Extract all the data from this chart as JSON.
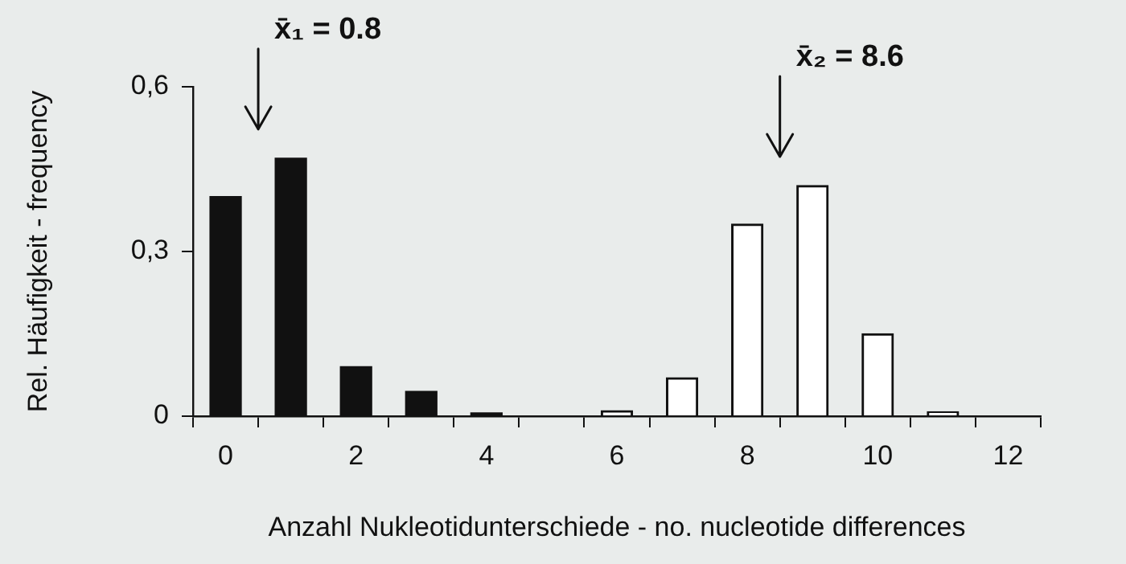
{
  "chart_data": {
    "type": "bar",
    "xlabel": "Anzahl Nukleotidunterschiede - no. nucleotide differences",
    "ylabel": "Rel. Häufigkeit - frequency",
    "series": [
      {
        "color": "#111111",
        "x": [
          0,
          1,
          2,
          3,
          4
        ],
        "values": [
          0.4,
          0.47,
          0.09,
          0.045,
          0.006
        ]
      },
      {
        "color": "#ffffff",
        "x": [
          6,
          7,
          8,
          9,
          10,
          11
        ],
        "values": [
          0.01,
          0.07,
          0.35,
          0.42,
          0.15,
          0.008
        ]
      }
    ],
    "xlim": [
      -0.5,
      12.5
    ],
    "xticks": [
      {
        "value": -0.5,
        "label": null
      },
      0,
      {
        "value": 0.5,
        "label": null
      },
      {
        "value": 1.5,
        "label": null
      },
      2,
      {
        "value": 2.5,
        "label": null
      },
      {
        "value": 3.5,
        "label": null
      },
      4,
      {
        "value": 4.5,
        "label": null
      },
      {
        "value": 5.5,
        "label": null
      },
      6,
      {
        "value": 6.5,
        "label": null
      },
      {
        "value": 7.5,
        "label": null
      },
      8,
      {
        "value": 8.5,
        "label": null
      },
      {
        "value": 9.5,
        "label": null
      },
      10,
      {
        "value": 10.5,
        "label": null
      },
      {
        "value": 11.5,
        "label": null
      },
      12,
      {
        "value": 12.5,
        "label": null
      }
    ],
    "ylim": [
      0,
      0.6
    ],
    "yticks": [
      0,
      {
        "value": 0.3,
        "label": "0,3"
      },
      {
        "value": 0.6,
        "label": "0,6"
      }
    ],
    "annotations": [
      "x̄₁ = 0.8",
      "x̄₂ = 8.6"
    ],
    "grid": false,
    "legend": false
  }
}
